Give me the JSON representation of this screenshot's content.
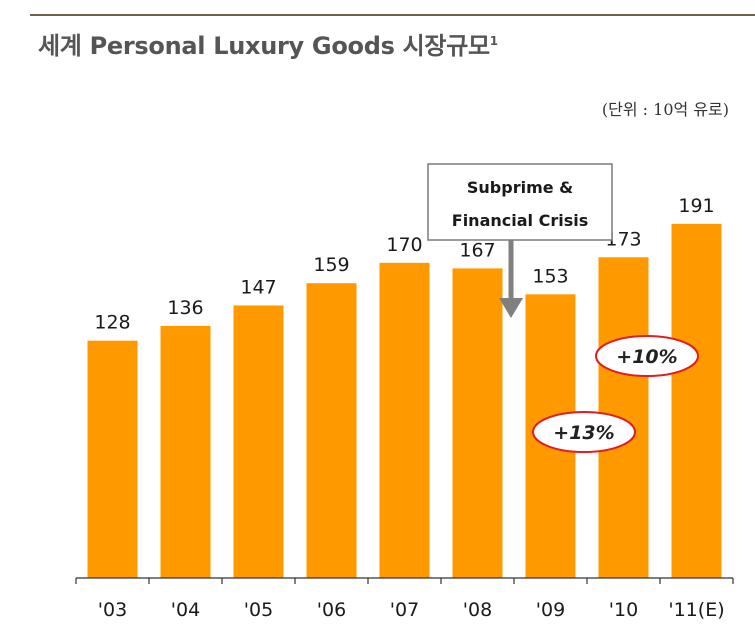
{
  "title": "세계 Personal Luxury Goods 시장규모",
  "title_footnote": "1",
  "unit_note": "(단위 : 10억 유로)",
  "chart_data": {
    "type": "bar",
    "title": "세계 Personal Luxury Goods 시장규모",
    "categories": [
      "'03",
      "'04",
      "'05",
      "'06",
      "'07",
      "'08",
      "'09",
      "'10",
      "'11(E)"
    ],
    "values": [
      128,
      136,
      147,
      159,
      170,
      167,
      153,
      173,
      191
    ],
    "data_labels": [
      "128",
      "136",
      "147",
      "159",
      "170",
      "167",
      "153",
      "173",
      "191"
    ],
    "xlabel": "",
    "ylabel": "",
    "ylim": [
      0,
      191
    ],
    "grid": false,
    "bar_color": "#FF9900",
    "annotations": [
      {
        "text_lines": [
          "Subprime &",
          "Financial Crisis"
        ],
        "points_to": "'09",
        "style": "boxed-callout-with-arrow"
      },
      {
        "text": "+13%",
        "category": "'09",
        "style": "red-ellipse"
      },
      {
        "text": "+10%",
        "category": "'10",
        "style": "red-ellipse"
      }
    ]
  },
  "colors": {
    "bar": "#FF9900",
    "ellipse_border": "#E02020",
    "arrow": "#808080",
    "title_text": "#555555",
    "rule": "#6B6352"
  }
}
